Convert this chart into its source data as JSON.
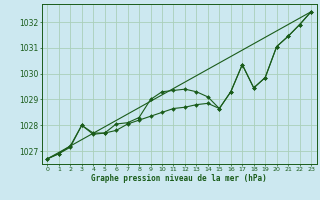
{
  "title": "Graphe pression niveau de la mer (hPa)",
  "bg_color": "#cce8f0",
  "plot_bg_color": "#cce8f0",
  "grid_color": "#aacfba",
  "line_color": "#1a5c1a",
  "marker_color": "#1a5c1a",
  "xlim": [
    -0.5,
    23.5
  ],
  "ylim": [
    1026.5,
    1032.7
  ],
  "xticks": [
    0,
    1,
    2,
    3,
    4,
    5,
    6,
    7,
    8,
    9,
    10,
    11,
    12,
    13,
    14,
    15,
    16,
    17,
    18,
    19,
    20,
    21,
    22,
    23
  ],
  "yticks": [
    1027,
    1028,
    1029,
    1030,
    1031,
    1032
  ],
  "series_wiggly": [
    [
      0,
      1026.7
    ],
    [
      1,
      1026.9
    ],
    [
      2,
      1027.15
    ],
    [
      3,
      1028.0
    ],
    [
      4,
      1027.65
    ],
    [
      5,
      1027.7
    ],
    [
      6,
      1027.8
    ],
    [
      7,
      1028.05
    ],
    [
      8,
      1028.2
    ],
    [
      9,
      1028.35
    ],
    [
      10,
      1028.5
    ],
    [
      11,
      1028.65
    ],
    [
      12,
      1028.7
    ],
    [
      13,
      1028.8
    ],
    [
      14,
      1028.85
    ],
    [
      15,
      1028.65
    ],
    [
      16,
      1029.3
    ],
    [
      17,
      1030.35
    ],
    [
      18,
      1029.45
    ],
    [
      19,
      1029.85
    ],
    [
      20,
      1031.05
    ],
    [
      21,
      1031.45
    ],
    [
      22,
      1031.9
    ],
    [
      23,
      1032.4
    ]
  ],
  "series_smooth": [
    [
      0,
      1026.7
    ],
    [
      1,
      1026.9
    ],
    [
      2,
      1027.2
    ],
    [
      3,
      1028.0
    ],
    [
      4,
      1027.7
    ],
    [
      5,
      1027.7
    ],
    [
      6,
      1028.05
    ],
    [
      7,
      1028.1
    ],
    [
      8,
      1028.3
    ],
    [
      9,
      1029.0
    ],
    [
      10,
      1029.3
    ],
    [
      11,
      1029.35
    ],
    [
      12,
      1029.4
    ],
    [
      13,
      1029.3
    ],
    [
      14,
      1029.1
    ],
    [
      15,
      1028.65
    ],
    [
      16,
      1029.3
    ],
    [
      17,
      1030.35
    ],
    [
      18,
      1029.45
    ],
    [
      19,
      1029.85
    ],
    [
      20,
      1031.05
    ],
    [
      21,
      1031.45
    ],
    [
      22,
      1031.9
    ],
    [
      23,
      1032.4
    ]
  ],
  "series_straight": [
    [
      0,
      1026.7
    ],
    [
      23,
      1032.4
    ]
  ]
}
